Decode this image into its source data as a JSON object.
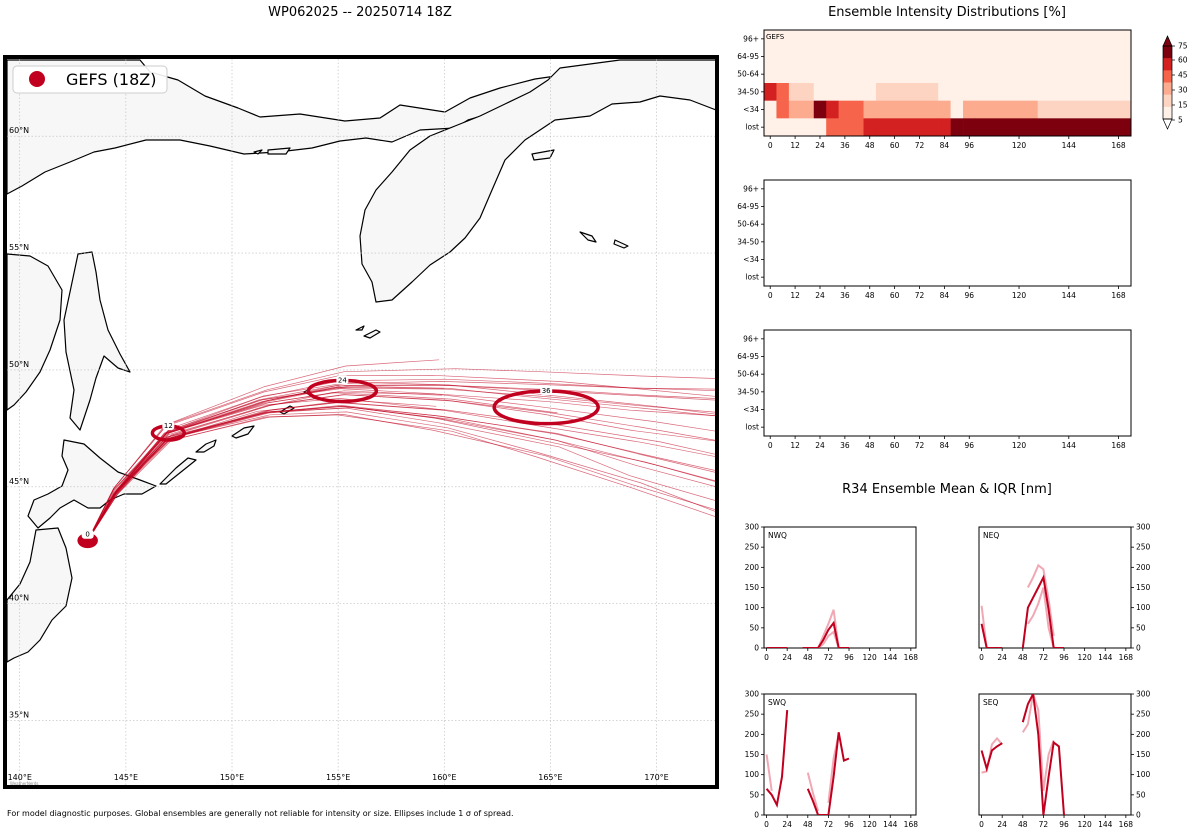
{
  "map": {
    "title": "WP062025 -- 20250714 18Z",
    "legend_label": "GEFS (18Z)",
    "legend_color": "#c0001e",
    "track_color": "#c0001e",
    "land_color": "#f7f7f7",
    "lon_labels": [
      "140°E",
      "145°E",
      "150°E",
      "155°E",
      "160°E",
      "165°E",
      "170°E"
    ],
    "lon_values": [
      140,
      145,
      150,
      155,
      160,
      165,
      170
    ],
    "lat_labels": [
      "35°N",
      "40°N",
      "45°N",
      "50°N",
      "55°N",
      "60°N"
    ],
    "lat_values": [
      35,
      40,
      45,
      50,
      55,
      60
    ],
    "lon_range": [
      139.4,
      172.8
    ],
    "lat_range": [
      32.2,
      63.3
    ],
    "ellipses": [
      {
        "label": "0",
        "lon": 143.2,
        "lat": 42.7,
        "rlon": 0.4,
        "rlat": 0.25
      },
      {
        "label": "12",
        "lon": 147.0,
        "lat": 47.3,
        "rlon": 0.75,
        "rlat": 0.3
      },
      {
        "label": "24",
        "lon": 155.2,
        "lat": 49.1,
        "rlon": 1.6,
        "rlat": 0.45
      },
      {
        "label": "36",
        "lon": 164.8,
        "lat": 48.4,
        "rlon": 2.45,
        "rlat": 0.7
      }
    ],
    "footnote": "For model diagnostic purposes. Global ensembles are generally not reliable for intensity or size. Ellipses include 1 σ of spread.",
    "watermark": "WeatherNerds"
  },
  "intensity": {
    "title": "Ensemble Intensity Distributions [%]",
    "y_labels": [
      "96+",
      "64-95",
      "50-64",
      "34-50",
      "<34",
      "lost"
    ],
    "x_ticks": [
      0,
      12,
      24,
      36,
      48,
      60,
      72,
      84,
      96,
      120,
      144,
      168
    ],
    "x_range": [
      -3,
      174
    ],
    "panels": [
      {
        "label": "GEFS",
        "intervals": [
          -3,
          3,
          9,
          21,
          27,
          33,
          45,
          51,
          81,
          87,
          93,
          99,
          129,
          174
        ],
        "values": [
          [
            1,
            1,
            1,
            1,
            1,
            1,
            1,
            1,
            1,
            1,
            1,
            1,
            1
          ],
          [
            1,
            1,
            1,
            1,
            1,
            1,
            1,
            1,
            1,
            1,
            1,
            1,
            1
          ],
          [
            12,
            1,
            1,
            1,
            1,
            1,
            1,
            1,
            1,
            1,
            1,
            1,
            1
          ],
          [
            70,
            45,
            20,
            1,
            1,
            1,
            1,
            20,
            1,
            1,
            1,
            1,
            1
          ],
          [
            1,
            45,
            30,
            78,
            60,
            50,
            40,
            30,
            30,
            12,
            30,
            30,
            15
          ],
          [
            1,
            1,
            1,
            1,
            45,
            50,
            60,
            60,
            60,
            80,
            80,
            80,
            80
          ]
        ]
      },
      {
        "label": "",
        "intervals": [],
        "values": []
      },
      {
        "label": "",
        "intervals": [],
        "values": []
      }
    ],
    "colorbar": {
      "ticks": [
        5,
        15,
        30,
        45,
        60,
        75
      ],
      "colors": [
        "#fff0e8",
        "#fdd4c2",
        "#fcab8f",
        "#f6644b",
        "#d32020",
        "#7d000f"
      ]
    }
  },
  "r34": {
    "title": "R34 Ensemble Mean & IQR [nm]",
    "x_ticks": [
      0,
      24,
      48,
      72,
      96,
      120,
      144,
      168
    ],
    "y_ticks": [
      0,
      50,
      100,
      150,
      200,
      250,
      300
    ],
    "ylim": [
      0,
      300
    ],
    "xlim": [
      -3,
      174
    ],
    "mean_color": "#c0001e",
    "iqr_color": "#f0a8b4",
    "panels": [
      {
        "label": "NWQ",
        "mean": [
          [
            [
              0,
              0
            ],
            [
              6,
              0
            ],
            [
              12,
              0
            ],
            [
              18,
              0
            ],
            [
              24,
              0
            ]
          ],
          [
            [
              42,
              0
            ],
            [
              48,
              0
            ],
            [
              54,
              0
            ],
            [
              60,
              0
            ],
            [
              66,
              20
            ],
            [
              72,
              45
            ],
            [
              78,
              62
            ],
            [
              84,
              0
            ],
            [
              90,
              0
            ],
            [
              96,
              0
            ]
          ]
        ],
        "iqr": [
          [
            [
              54,
              0
            ],
            [
              60,
              0
            ],
            [
              66,
              30
            ],
            [
              72,
              60
            ],
            [
              78,
              95
            ],
            [
              84,
              0
            ]
          ],
          [
            [
              54,
              0
            ],
            [
              60,
              0
            ],
            [
              66,
              10
            ],
            [
              72,
              30
            ],
            [
              78,
              40
            ],
            [
              84,
              0
            ]
          ]
        ]
      },
      {
        "label": "NEQ",
        "mean": [
          [
            [
              0,
              60
            ],
            [
              6,
              0
            ],
            [
              12,
              0
            ],
            [
              18,
              0
            ],
            [
              24,
              0
            ]
          ],
          [
            [
              48,
              0
            ],
            [
              54,
              100
            ],
            [
              60,
              125
            ],
            [
              66,
              150
            ],
            [
              72,
              175
            ],
            [
              78,
              95
            ],
            [
              84,
              0
            ],
            [
              90,
              0
            ],
            [
              96,
              0
            ]
          ]
        ],
        "iqr": [
          [
            [
              0,
              105
            ],
            [
              6,
              0
            ]
          ],
          [
            [
              54,
              150
            ],
            [
              60,
              175
            ],
            [
              66,
              205
            ],
            [
              72,
              195
            ],
            [
              78,
              120
            ],
            [
              84,
              30
            ]
          ],
          [
            [
              54,
              60
            ],
            [
              60,
              80
            ],
            [
              66,
              110
            ],
            [
              72,
              150
            ],
            [
              78,
              50
            ],
            [
              84,
              0
            ]
          ]
        ]
      },
      {
        "label": "SWQ",
        "mean": [
          [
            [
              0,
              65
            ],
            [
              6,
              50
            ],
            [
              12,
              25
            ],
            [
              18,
              95
            ],
            [
              24,
              260
            ]
          ],
          [
            [
              48,
              65
            ],
            [
              54,
              35
            ],
            [
              60,
              0
            ],
            [
              66,
              0
            ],
            [
              72,
              0
            ],
            [
              78,
              95
            ],
            [
              84,
              205
            ],
            [
              90,
              135
            ],
            [
              96,
              140
            ]
          ]
        ],
        "iqr": [
          [
            [
              0,
              150
            ],
            [
              6,
              60
            ]
          ],
          [
            [
              48,
              105
            ],
            [
              54,
              55
            ],
            [
              60,
              10
            ]
          ],
          [
            [
              72,
              30
            ],
            [
              78,
              140
            ],
            [
              84,
              200
            ]
          ]
        ]
      },
      {
        "label": "SEQ",
        "mean": [
          [
            [
              0,
              160
            ],
            [
              6,
              115
            ],
            [
              12,
              160
            ],
            [
              18,
              170
            ],
            [
              24,
              178
            ]
          ],
          [
            [
              48,
              230
            ],
            [
              54,
              275
            ],
            [
              60,
              300
            ],
            [
              66,
              200
            ],
            [
              72,
              0
            ],
            [
              78,
              95
            ],
            [
              84,
              180
            ],
            [
              90,
              170
            ],
            [
              96,
              0
            ]
          ]
        ],
        "iqr": [
          [
            [
              0,
              105
            ],
            [
              6,
              108
            ],
            [
              12,
              175
            ],
            [
              18,
              190
            ],
            [
              24,
              175
            ]
          ],
          [
            [
              48,
              205
            ],
            [
              54,
              225
            ],
            [
              60,
              300
            ],
            [
              66,
              260
            ],
            [
              72,
              60
            ],
            [
              78,
              150
            ],
            [
              84,
              185
            ]
          ]
        ]
      }
    ]
  }
}
